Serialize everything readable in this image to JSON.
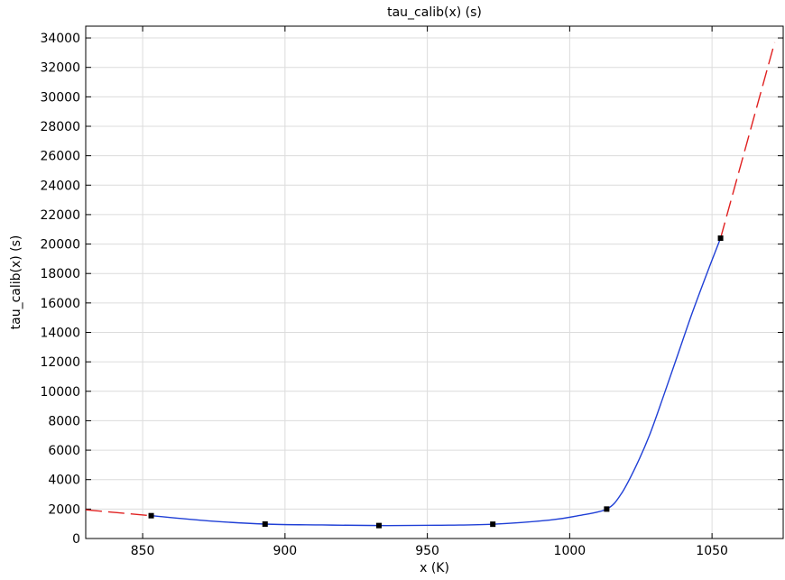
{
  "chart_data": {
    "type": "line",
    "title": "tau_calib(x) (s)",
    "xlabel": "x (K)",
    "ylabel": "tau_calib(x) (s)",
    "xlim": [
      830,
      1075
    ],
    "ylim": [
      0,
      34800
    ],
    "x_ticks": [
      850,
      900,
      950,
      1000,
      1050
    ],
    "y_ticks": [
      0,
      2000,
      4000,
      6000,
      8000,
      10000,
      12000,
      14000,
      16000,
      18000,
      20000,
      22000,
      24000,
      26000,
      28000,
      30000,
      32000,
      34000
    ],
    "grid": true,
    "legend": "none",
    "series": [
      {
        "role": "interpolation",
        "color": "#1f3fd6",
        "style": "solid",
        "points": [
          [
            853,
            1550
          ],
          [
            873,
            1200
          ],
          [
            893,
            980
          ],
          [
            913,
            920
          ],
          [
            933,
            880
          ],
          [
            953,
            900
          ],
          [
            973,
            970
          ],
          [
            993,
            1250
          ],
          [
            1003,
            1550
          ],
          [
            1013,
            2000
          ],
          [
            1018,
            3000
          ],
          [
            1023,
            4800
          ],
          [
            1028,
            7000
          ],
          [
            1033,
            9700
          ],
          [
            1038,
            12500
          ],
          [
            1043,
            15300
          ],
          [
            1048,
            17900
          ],
          [
            1053,
            20400
          ]
        ]
      },
      {
        "role": "extrapolation",
        "color": "#e02020",
        "style": "dashed",
        "points": [
          [
            830,
            1950
          ],
          [
            853,
            1550
          ]
        ]
      },
      {
        "role": "extrapolation",
        "color": "#e02020",
        "style": "dashed",
        "points": [
          [
            1053,
            20400
          ],
          [
            1072,
            33700
          ]
        ]
      },
      {
        "role": "markers",
        "color": "#000000",
        "points": [
          [
            853,
            1550
          ],
          [
            893,
            980
          ],
          [
            933,
            880
          ],
          [
            973,
            970
          ],
          [
            1013,
            2000
          ],
          [
            1053,
            20400
          ]
        ]
      }
    ]
  }
}
